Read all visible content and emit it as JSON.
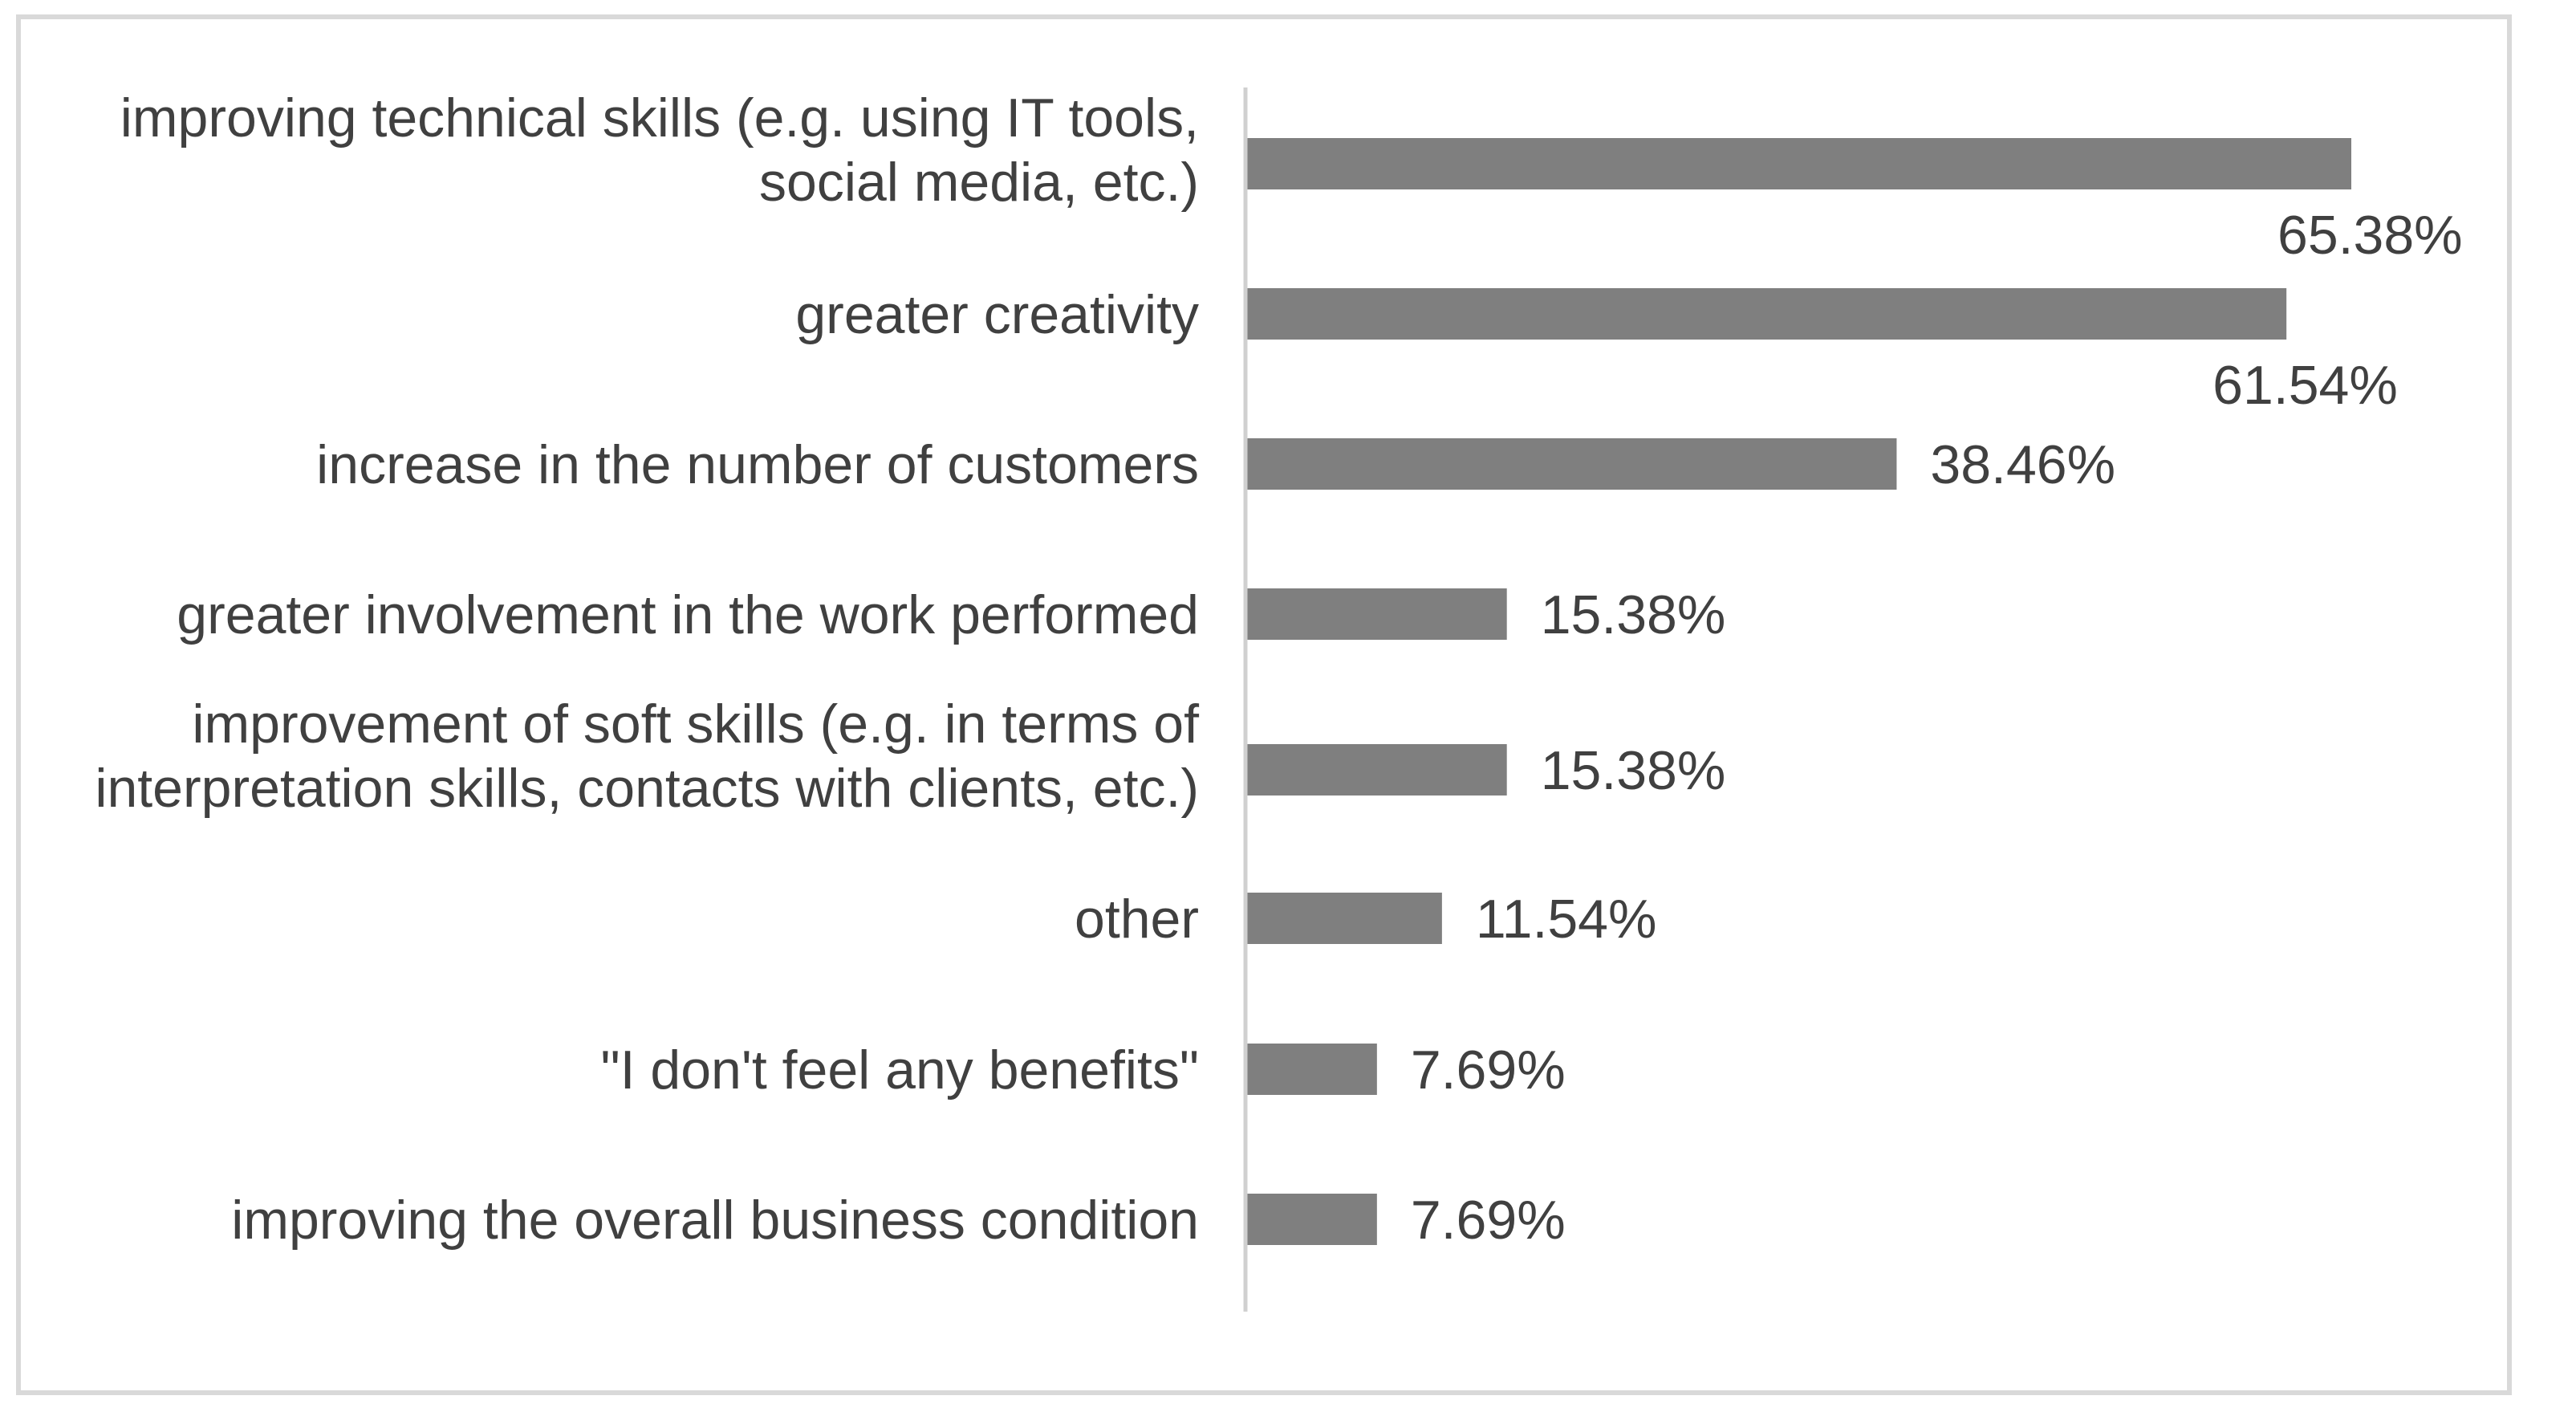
{
  "chart_data": {
    "type": "bar",
    "orientation": "horizontal",
    "title": "",
    "xlabel": "",
    "ylabel": "",
    "xlim": [
      0,
      70
    ],
    "grid": false,
    "legend": "none",
    "bar_color": "#7f7f7f",
    "categories": [
      [
        "improving technical skills (e.g. using IT tools,",
        "social media, etc.)"
      ],
      [
        "greater creativity"
      ],
      [
        "increase in the number of customers"
      ],
      [
        "greater involvement in the work performed"
      ],
      [
        "improvement of soft skills (e.g. in terms of",
        "interpretation skills, contacts with clients, etc.)"
      ],
      [
        "other"
      ],
      [
        "\"I don't feel any benefits\""
      ],
      [
        "improving the overall business condition"
      ]
    ],
    "values": [
      65.38,
      61.54,
      38.46,
      15.38,
      15.38,
      11.54,
      7.69,
      7.69
    ],
    "value_labels": [
      "65.38%",
      "61.54%",
      "38.46%",
      "15.38%",
      "15.38%",
      "11.54%",
      "7.69%",
      "7.69%"
    ]
  }
}
